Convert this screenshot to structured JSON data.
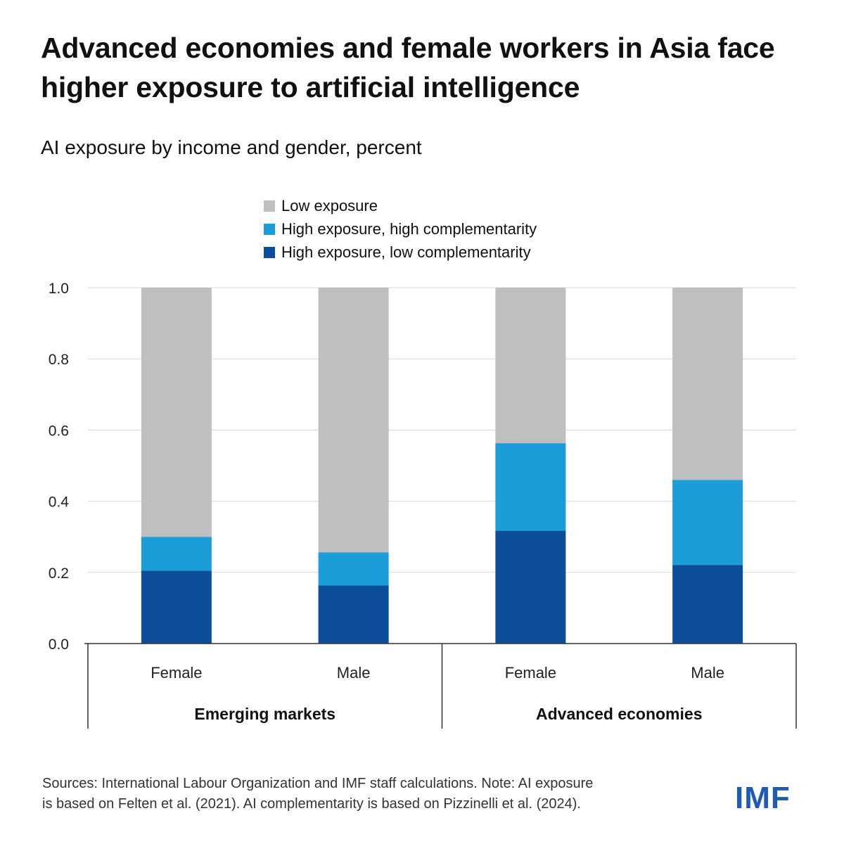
{
  "chart_data": {
    "type": "bar",
    "stacked": true,
    "title": "Advanced economies and female workers in Asia face higher exposure to artificial intelligence",
    "subtitle": "AI exposure by income and gender, percent",
    "categories": [
      "Female",
      "Male",
      "Female",
      "Male"
    ],
    "groups": [
      {
        "label": "Emerging markets",
        "categories": [
          "Female",
          "Male"
        ]
      },
      {
        "label": "Advanced economies",
        "categories": [
          "Female",
          "Male"
        ]
      }
    ],
    "series": [
      {
        "name": "High exposure, low complementarity",
        "color": "#0d4e9a",
        "values": [
          0.205,
          0.163,
          0.317,
          0.221
        ]
      },
      {
        "name": "High exposure, high complementarity",
        "color": "#1b9dd9",
        "values": [
          0.095,
          0.093,
          0.246,
          0.239
        ]
      },
      {
        "name": "Low exposure",
        "color": "#bfbfbf",
        "values": [
          0.7,
          0.744,
          0.437,
          0.54
        ]
      }
    ],
    "legend_order": [
      "Low exposure",
      "High exposure, high complementarity",
      "High exposure, low complementarity"
    ],
    "ylim": [
      0,
      1.0
    ],
    "yticks": [
      "0.0",
      "0.2",
      "0.4",
      "0.6",
      "0.8",
      "1.0"
    ],
    "ytick_values": [
      0,
      0.2,
      0.4,
      0.6,
      0.8,
      1.0
    ],
    "grid": true,
    "legend_position": "top"
  },
  "footer": {
    "sources_line1": "Sources: International Labour Organization and IMF staff calculations. Note: AI exposure",
    "sources_line2": "is based on Felten et al. (2021). AI complementarity is based on Pizzinelli et al. (2024).",
    "logo": "IMF"
  },
  "colors": {
    "grid": "#d9d9d9",
    "axis": "#333333",
    "logo": "#1f5bb3"
  }
}
